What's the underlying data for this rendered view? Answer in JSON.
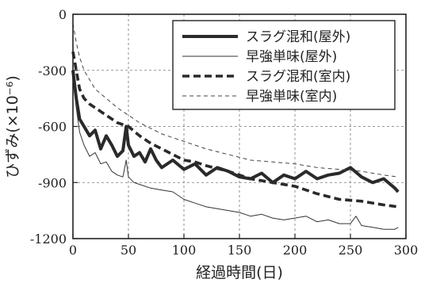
{
  "chart_data": {
    "type": "line",
    "xlabel": "経過時間(日)",
    "ylabel": "ひずみ(×10⁻⁶)",
    "xlim": [
      0,
      300
    ],
    "ylim": [
      -1200,
      0
    ],
    "xticks": [
      "0",
      "50",
      "100",
      "150",
      "200",
      "250",
      "300"
    ],
    "yticks": [
      "0",
      "-300",
      "-600",
      "-900",
      "-1200"
    ],
    "grid": true,
    "legend_position": "top-right",
    "series": [
      {
        "name": "スラグ混和(屋外)",
        "style": "thick-solid",
        "x": [
          0,
          3,
          6,
          10,
          15,
          20,
          25,
          30,
          35,
          40,
          45,
          48,
          50,
          55,
          60,
          65,
          70,
          75,
          80,
          90,
          100,
          110,
          120,
          130,
          140,
          150,
          160,
          170,
          180,
          190,
          200,
          210,
          220,
          230,
          240,
          250,
          260,
          270,
          280,
          290,
          293
        ],
        "values": [
          -300,
          -450,
          -560,
          -600,
          -650,
          -620,
          -720,
          -650,
          -700,
          -760,
          -730,
          -600,
          -700,
          -760,
          -740,
          -790,
          -720,
          -780,
          -820,
          -780,
          -830,
          -800,
          -860,
          -820,
          -840,
          -870,
          -880,
          -850,
          -900,
          -860,
          -880,
          -840,
          -880,
          -860,
          -850,
          -820,
          -870,
          -900,
          -880,
          -930,
          -950
        ]
      },
      {
        "name": "早強単味(屋外)",
        "style": "thin-solid",
        "x": [
          0,
          3,
          6,
          10,
          15,
          20,
          25,
          30,
          35,
          40,
          45,
          48,
          50,
          55,
          60,
          70,
          80,
          90,
          100,
          110,
          120,
          130,
          140,
          150,
          160,
          170,
          180,
          190,
          200,
          210,
          220,
          230,
          240,
          250,
          255,
          260,
          270,
          280,
          290,
          293
        ],
        "values": [
          -350,
          -500,
          -630,
          -700,
          -760,
          -740,
          -800,
          -790,
          -840,
          -860,
          -870,
          -780,
          -870,
          -900,
          -910,
          -930,
          -940,
          -950,
          -990,
          -1010,
          -1030,
          -1040,
          -1050,
          -1060,
          -1080,
          -1070,
          -1090,
          -1100,
          -1090,
          -1080,
          -1110,
          -1100,
          -1120,
          -1120,
          -1080,
          -1130,
          -1140,
          -1150,
          -1150,
          -1140
        ]
      },
      {
        "name": "スラグ混和(室内)",
        "style": "thick-dashed",
        "x": [
          0,
          3,
          6,
          10,
          15,
          20,
          30,
          40,
          50,
          60,
          70,
          80,
          90,
          100,
          110,
          120,
          140,
          160,
          180,
          200,
          220,
          240,
          260,
          280,
          293
        ],
        "values": [
          -200,
          -300,
          -400,
          -450,
          -480,
          -500,
          -540,
          -580,
          -600,
          -650,
          -690,
          -720,
          -750,
          -780,
          -790,
          -810,
          -840,
          -880,
          -900,
          -920,
          -960,
          -990,
          -1000,
          -1020,
          -1030
        ]
      },
      {
        "name": "早強単味(室内)",
        "style": "thin-dashed",
        "x": [
          0,
          3,
          6,
          10,
          15,
          20,
          30,
          40,
          50,
          60,
          70,
          80,
          90,
          100,
          110,
          120,
          140,
          160,
          180,
          200,
          220,
          240,
          260,
          280,
          293
        ],
        "values": [
          -50,
          -150,
          -230,
          -300,
          -350,
          -400,
          -450,
          -500,
          -540,
          -580,
          -610,
          -640,
          -660,
          -680,
          -700,
          -720,
          -750,
          -780,
          -790,
          -800,
          -820,
          -830,
          -840,
          -860,
          -870
        ]
      }
    ]
  }
}
